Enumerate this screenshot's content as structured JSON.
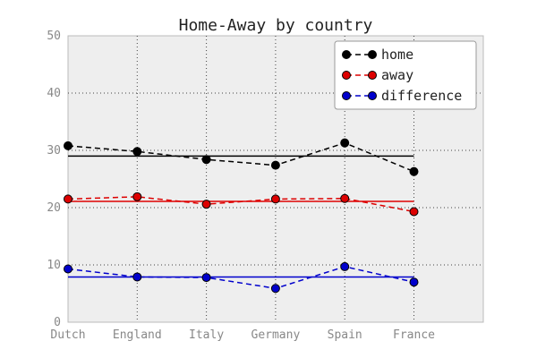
{
  "chart_data": {
    "type": "line",
    "title": "Home-Away by country",
    "xlabel": "",
    "ylabel": "",
    "categories": [
      "Dutch",
      "England",
      "Italy",
      "Germany",
      "Spain",
      "France"
    ],
    "ylim": [
      0,
      50
    ],
    "yticks": [
      0,
      10,
      20,
      30,
      40,
      50
    ],
    "grid": true,
    "legend_position": "top-right",
    "series": [
      {
        "name": "home",
        "color": "#000000",
        "values": [
          30.8,
          29.8,
          28.4,
          27.4,
          31.3,
          26.3
        ],
        "mean": 29.0
      },
      {
        "name": "away",
        "color": "#dd0000",
        "values": [
          21.5,
          21.9,
          20.6,
          21.5,
          21.6,
          19.3
        ],
        "mean": 21.1
      },
      {
        "name": "difference",
        "color": "#0000cc",
        "values": [
          9.3,
          7.9,
          7.8,
          5.9,
          9.7,
          7.0
        ],
        "mean": 7.9
      }
    ],
    "plot_background": "#eeeeee"
  }
}
